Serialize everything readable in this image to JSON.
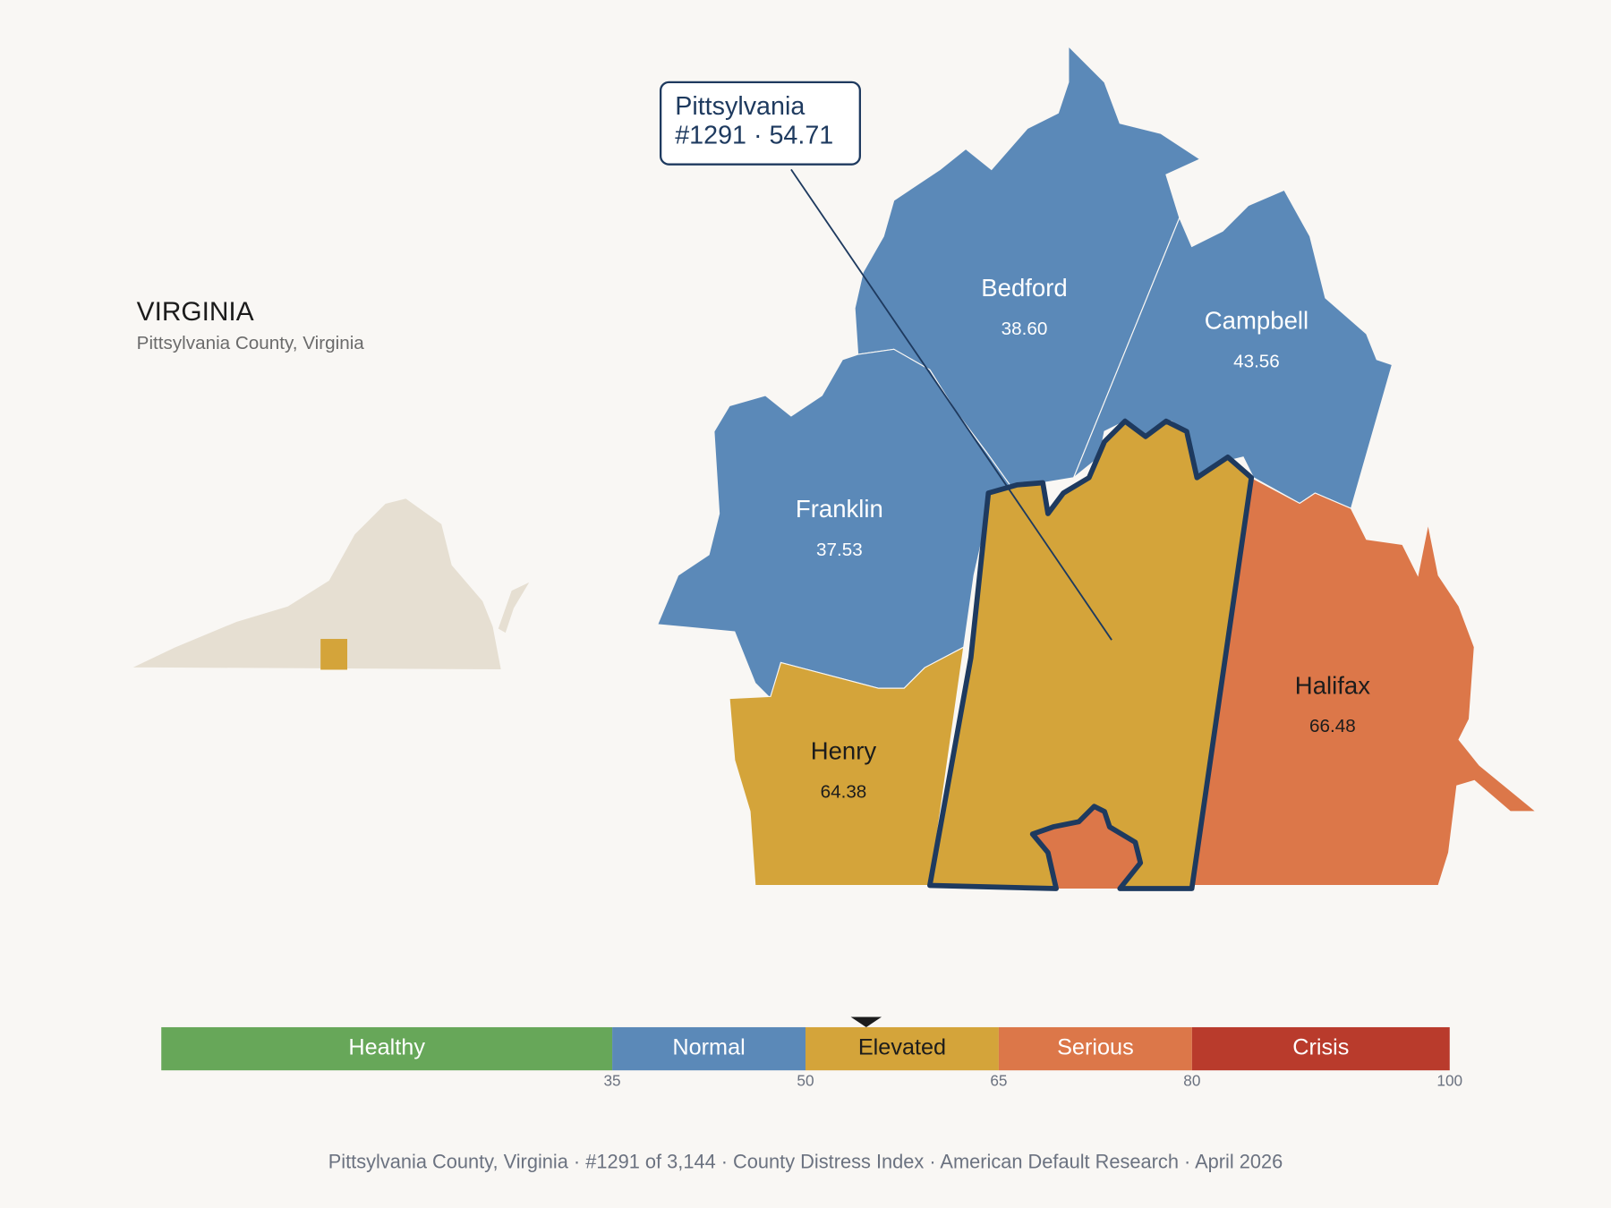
{
  "state": {
    "title": "VIRGINIA",
    "subtitle": "Pittsylvania County, Virginia"
  },
  "callout": {
    "name": "Pittsylvania",
    "detail": "#1291 · 54.71"
  },
  "counties": [
    {
      "name": "Bedford",
      "value": "38.60",
      "color": "#5b89b8"
    },
    {
      "name": "Campbell",
      "value": "43.56",
      "color": "#5b89b8"
    },
    {
      "name": "Franklin",
      "value": "37.53",
      "color": "#5b89b8"
    },
    {
      "name": "Henry",
      "value": "64.38",
      "color": "#d4a43a"
    },
    {
      "name": "Halifax",
      "value": "66.48",
      "color": "#dc7749"
    }
  ],
  "scale": {
    "marker": 54.71,
    "bands": [
      {
        "label": "Healthy",
        "color": "#67a759"
      },
      {
        "label": "Normal",
        "color": "#5b89b8"
      },
      {
        "label": "Elevated",
        "color": "#d4a43a"
      },
      {
        "label": "Serious",
        "color": "#dc7749"
      },
      {
        "label": "Crisis",
        "color": "#b93b2c"
      }
    ],
    "ticks": [
      35,
      50,
      65,
      80,
      100
    ]
  },
  "footer": "Pittsylvania County, Virginia  ·  #1291 of 3,144  ·  County Distress Index  ·  American Default Research  ·  April 2026"
}
